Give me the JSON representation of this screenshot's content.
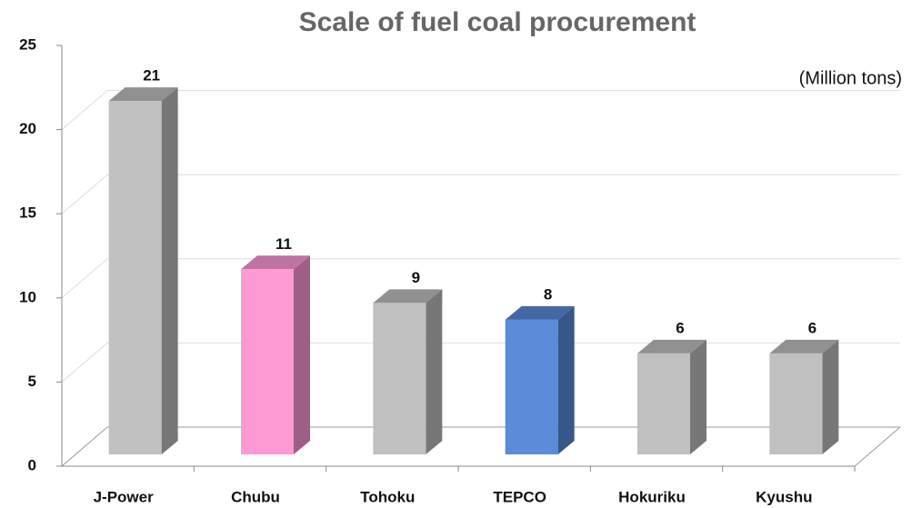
{
  "chart_data": {
    "type": "bar3d",
    "title": "Scale of fuel coal procurement",
    "unit_label": "(Million tons)",
    "categories": [
      "J-Power",
      "Chubu",
      "Tohoku",
      "TEPCO",
      "Hokuriku",
      "Kyushu"
    ],
    "values": [
      21,
      11,
      9,
      8,
      6,
      6
    ],
    "colors": [
      "#c0c0c0",
      "#ff99d6",
      "#c0c0c0",
      "#5b8bd9",
      "#c0c0c0",
      "#c0c0c0"
    ],
    "ylim": [
      0,
      25
    ],
    "yticks": [
      0,
      5,
      10,
      15,
      20,
      25
    ],
    "grid": true
  }
}
